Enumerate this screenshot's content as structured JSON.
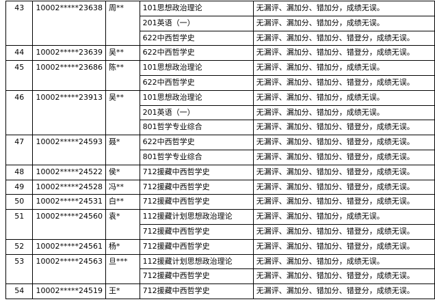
{
  "table": {
    "rows": [
      {
        "no": "43",
        "id": "10002*****23638",
        "name": "周**",
        "subjects": [
          {
            "subject": "101思想政治理论",
            "result": "无漏评、漏加分、错加分，成绩无误。"
          },
          {
            "subject": "201英语（一）",
            "result": "无漏评、漏加分、错加分，成绩无误。"
          },
          {
            "subject": "622中西哲学史",
            "result": "无漏评、漏加分、错加分、错登分，成绩无误。"
          }
        ]
      },
      {
        "no": "44",
        "id": "10002*****23639",
        "name": "吴**",
        "subjects": [
          {
            "subject": "622中西哲学史",
            "result": "无漏评、漏加分、错加分、错登分，成绩无误。"
          }
        ]
      },
      {
        "no": "45",
        "id": "10002*****23686",
        "name": "陈**",
        "subjects": [
          {
            "subject": "101思想政治理论",
            "result": "无漏评、漏加分、错加分，成绩无误。"
          },
          {
            "subject": "622中西哲学史",
            "result": "无漏评、漏加分、错加分、错登分，成绩无误。"
          }
        ]
      },
      {
        "no": "46",
        "id": "10002*****23913",
        "name": "吴**",
        "subjects": [
          {
            "subject": "101思想政治理论",
            "result": "无漏评、漏加分、错加分，成绩无误。"
          },
          {
            "subject": "201英语（一）",
            "result": "无漏评、漏加分、错加分，成绩无误。"
          },
          {
            "subject": "801哲学专业综合",
            "result": "无漏评、漏加分、错加分、错登分，成绩无误。"
          }
        ]
      },
      {
        "no": "47",
        "id": "10002*****24593",
        "name": "聂*",
        "subjects": [
          {
            "subject": "622中西哲学史",
            "result": "无漏评、漏加分、错加分、错登分，成绩无误。"
          },
          {
            "subject": "801哲学专业综合",
            "result": "无漏评、漏加分、错加分、错登分，成绩无误。"
          }
        ]
      },
      {
        "no": "48",
        "id": "10002*****24522",
        "name": "侯*",
        "subjects": [
          {
            "subject": "712援藏中西哲学史",
            "result": "无漏评、漏加分、错加分、错登分，成绩无误。"
          }
        ]
      },
      {
        "no": "49",
        "id": "10002*****24528",
        "name": "冯**",
        "subjects": [
          {
            "subject": "712援藏中西哲学史",
            "result": "无漏评、漏加分、错加分、错登分，成绩无误。"
          }
        ]
      },
      {
        "no": "50",
        "id": "10002*****24531",
        "name": "白**",
        "subjects": [
          {
            "subject": "712援藏中西哲学史",
            "result": "无漏评、漏加分、错加分、错登分，成绩无误。"
          }
        ]
      },
      {
        "no": "51",
        "id": "10002*****24560",
        "name": "袁*",
        "subjects": [
          {
            "subject": "112援藏计划思想政治理论",
            "result": "无漏评、漏加分、错加分，成绩无误。"
          },
          {
            "subject": "712援藏中西哲学史",
            "result": "无漏评、漏加分、错加分、错登分，成绩无误。"
          }
        ]
      },
      {
        "no": "52",
        "id": "10002*****24561",
        "name": "杨*",
        "subjects": [
          {
            "subject": "712援藏中西哲学史",
            "result": "无漏评、漏加分、错加分、错登分，成绩无误。"
          }
        ]
      },
      {
        "no": "53",
        "id": "10002*****24563",
        "name": "旦***",
        "subjects": [
          {
            "subject": "112援藏计划思想政治理论",
            "result": "无漏评、漏加分、错加分，成绩无误。"
          },
          {
            "subject": "712援藏中西哲学史",
            "result": "无漏评、漏加分、错加分、错登分，成绩无误。"
          }
        ]
      },
      {
        "no": "54",
        "id": "10002*****24519",
        "name": "王*",
        "subjects": [
          {
            "subject": "712援藏中西哲学史",
            "result": "无漏评、漏加分、错加分、错登分，成绩无误。"
          }
        ]
      }
    ]
  }
}
